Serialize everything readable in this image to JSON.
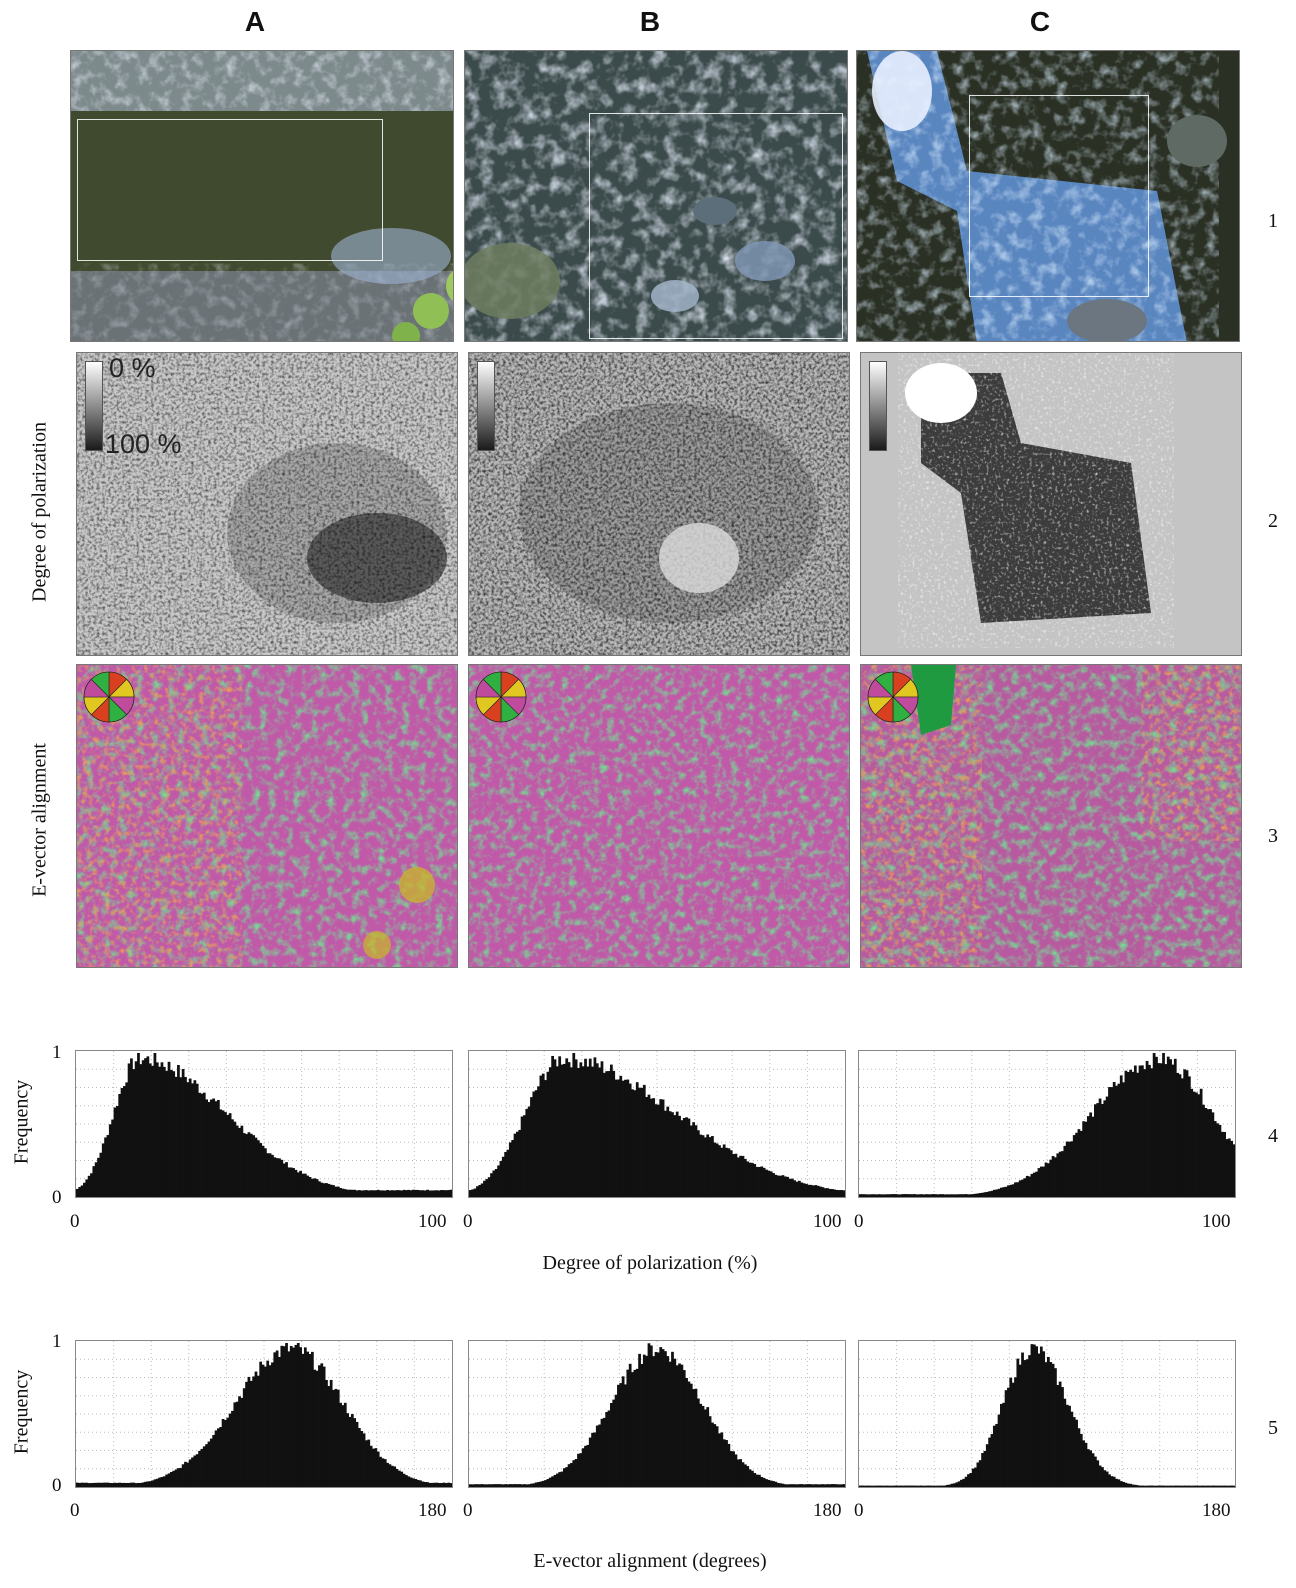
{
  "columns": [
    "A",
    "B",
    "C"
  ],
  "rows": [
    "1",
    "2",
    "3",
    "4",
    "5"
  ],
  "row_labels": {
    "dop": "Degree of polarization",
    "evector": "E-vector alignment",
    "freq4": "Frequency",
    "freq5": "Frequency"
  },
  "colorbar": {
    "top": "0 %",
    "bottom": "100 %"
  },
  "axes": {
    "dop_title": "Degree of polarization (%)",
    "ev_title": "E-vector alignment (degrees)",
    "y_ticks": [
      "1",
      "0"
    ],
    "dop_xticks": [
      "0",
      "100"
    ],
    "ev_xticks": [
      "0",
      "180"
    ]
  },
  "colors": {
    "magenta": "#c05aa8",
    "green": "#2fb34a",
    "red": "#c8401c",
    "yellow": "#d8c828",
    "water_dark": "#3e4a35",
    "water_bright": "#b8d0f0"
  },
  "chart_data": [
    {
      "type": "bar",
      "panel": "A4",
      "xlabel": "Degree of polarization (%)",
      "ylabel": "Frequency",
      "xlim": [
        0,
        100
      ],
      "ylim": [
        0,
        1
      ],
      "shape": {
        "peak": 17,
        "rise": 7,
        "fall": 23,
        "tail": 0.05
      }
    },
    {
      "type": "bar",
      "panel": "B4",
      "xlabel": "Degree of polarization (%)",
      "ylabel": "Frequency",
      "xlim": [
        0,
        100
      ],
      "ylim": [
        0,
        1
      ],
      "shape": {
        "peak": 25,
        "rise": 10,
        "fall": 30,
        "tail": 0.05
      }
    },
    {
      "type": "bar",
      "panel": "C4",
      "xlabel": "Degree of polarization (%)",
      "ylabel": "Frequency",
      "xlim": [
        0,
        100
      ],
      "ylim": [
        0,
        1
      ],
      "shape": {
        "peak": 80,
        "rise": 18,
        "fall": 14,
        "tail": 0.02
      }
    },
    {
      "type": "bar",
      "panel": "A5",
      "xlabel": "E-vector alignment (degrees)",
      "ylabel": "Frequency",
      "xlim": [
        0,
        180
      ],
      "ylim": [
        0,
        1
      ],
      "shape": {
        "peak": 103,
        "rise": 27,
        "fall": 25,
        "tail": 0.03
      }
    },
    {
      "type": "bar",
      "panel": "B5",
      "xlabel": "E-vector alignment (degrees)",
      "ylabel": "Frequency",
      "xlim": [
        0,
        180
      ],
      "ylim": [
        0,
        1
      ],
      "shape": {
        "peak": 90,
        "rise": 22,
        "fall": 22,
        "tail": 0.02
      }
    },
    {
      "type": "bar",
      "panel": "C5",
      "xlabel": "E-vector alignment (degrees)",
      "ylabel": "Frequency",
      "xlim": [
        0,
        180
      ],
      "ylim": [
        0,
        1
      ],
      "shape": {
        "peak": 83,
        "rise": 14,
        "fall": 17,
        "tail": 0.01
      }
    }
  ]
}
